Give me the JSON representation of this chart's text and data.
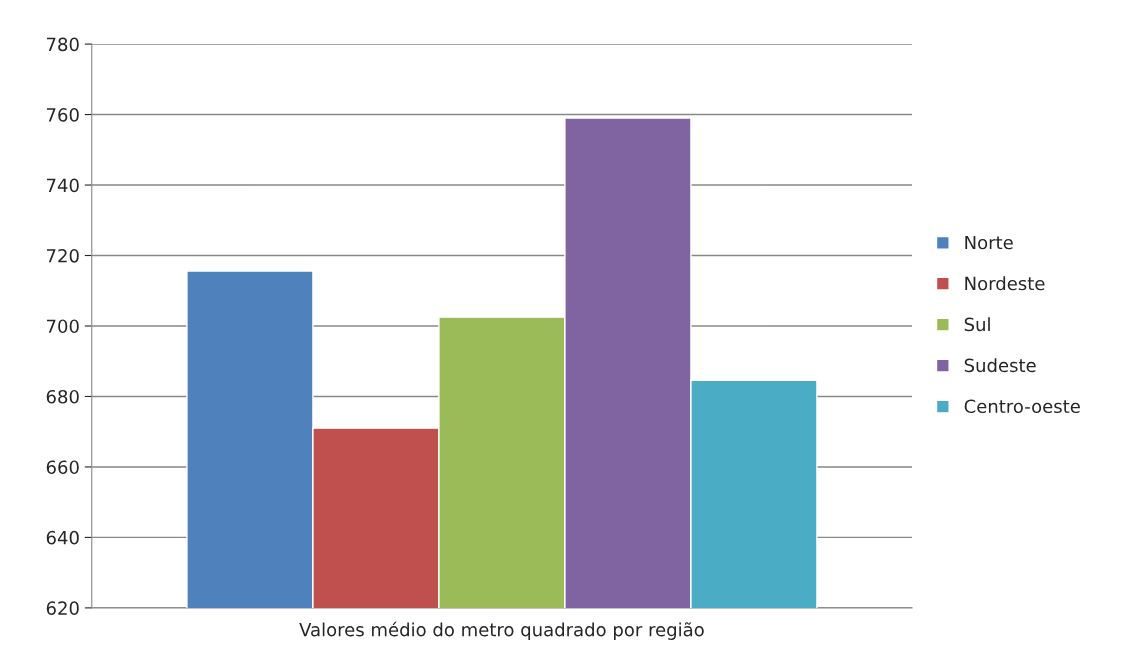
{
  "chart_data": {
    "type": "bar",
    "categories": [
      "Valores médio do metro quadrado por região"
    ],
    "series": [
      {
        "name": "Norte",
        "color": "#4f81bd",
        "values": [
          715.6
        ]
      },
      {
        "name": "Nordeste",
        "color": "#c0504d",
        "values": [
          671
        ]
      },
      {
        "name": "Sul",
        "color": "#9bbb59",
        "values": [
          702.5
        ]
      },
      {
        "name": "Sudeste",
        "color": "#8064a2",
        "values": [
          759
        ]
      },
      {
        "name": "Centro-oeste",
        "color": "#4bacc6",
        "values": [
          684.6
        ]
      }
    ],
    "ylim": [
      620,
      780
    ],
    "yticks": [
      620,
      640,
      660,
      680,
      700,
      720,
      740,
      760,
      780
    ],
    "grid": "y",
    "legend": "right"
  }
}
